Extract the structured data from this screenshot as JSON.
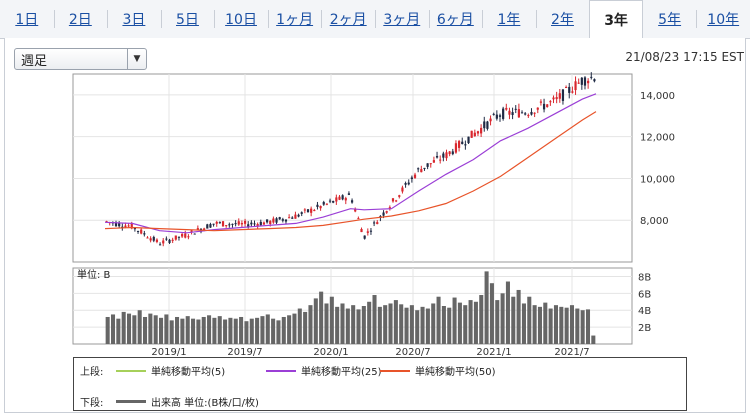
{
  "tabs": [
    {
      "label": "1日",
      "active": false
    },
    {
      "label": "2日",
      "active": false
    },
    {
      "label": "3日",
      "active": false
    },
    {
      "label": "5日",
      "active": false
    },
    {
      "label": "10日",
      "active": false
    },
    {
      "label": "1ヶ月",
      "active": false
    },
    {
      "label": "2ヶ月",
      "active": false
    },
    {
      "label": "3ヶ月",
      "active": false
    },
    {
      "label": "6ヶ月",
      "active": false
    },
    {
      "label": "1年",
      "active": false
    },
    {
      "label": "2年",
      "active": false
    },
    {
      "label": "3年",
      "active": true
    },
    {
      "label": "5年",
      "active": false
    },
    {
      "label": "10年",
      "active": false
    }
  ],
  "period_select": {
    "value": "週足"
  },
  "timestamp": "21/08/23 17:15 EST",
  "colors": {
    "up": "#d9272e",
    "down": "#1f2a44",
    "ma5": "#a6d05a",
    "ma25": "#9b3fd6",
    "ma50": "#e8542a",
    "volume": "#666666"
  },
  "chart_data": [
    {
      "type": "candlestick",
      "title": "",
      "x_tick_labels": [
        "2019/1",
        "2019/7",
        "2020/1",
        "2020/7",
        "2021/1",
        "2021/7"
      ],
      "y_tick_labels": [
        "8,000",
        "10,000",
        "12,000",
        "14,000"
      ],
      "ylim": [
        6000,
        15000
      ],
      "x_range": [
        "2018/08",
        "2021/08"
      ],
      "grid": true,
      "series": [
        {
          "name": "単純移動平均(5)",
          "x": [
            "2018/08",
            "2018/10",
            "2018/12",
            "2019/02",
            "2019/04",
            "2019/06",
            "2019/08",
            "2019/10",
            "2019/12",
            "2020/02",
            "2020/03",
            "2020/05",
            "2020/07",
            "2020/09",
            "2020/11",
            "2021/01",
            "2021/03",
            "2021/05",
            "2021/07",
            "2021/08"
          ],
          "values": [
            7950,
            7700,
            6900,
            7300,
            7850,
            7800,
            7900,
            8200,
            8700,
            9200,
            7200,
            8800,
            10400,
            11100,
            12100,
            13100,
            13200,
            13700,
            14700,
            14900
          ]
        },
        {
          "name": "単純移動平均(25)",
          "x": [
            "2018/08",
            "2018/10",
            "2018/12",
            "2019/02",
            "2019/04",
            "2019/06",
            "2019/08",
            "2019/10",
            "2019/12",
            "2020/02",
            "2020/03",
            "2020/05",
            "2020/07",
            "2020/09",
            "2020/11",
            "2021/01",
            "2021/03",
            "2021/05",
            "2021/07",
            "2021/08"
          ],
          "values": [
            7900,
            7850,
            7500,
            7400,
            7550,
            7650,
            7750,
            7850,
            8150,
            8550,
            8500,
            8550,
            9400,
            10200,
            10900,
            11800,
            12400,
            13100,
            13800,
            14050
          ]
        },
        {
          "name": "単純移動平均(50)",
          "x": [
            "2018/08",
            "2018/10",
            "2018/12",
            "2019/02",
            "2019/04",
            "2019/06",
            "2019/08",
            "2019/10",
            "2019/12",
            "2020/02",
            "2020/03",
            "2020/05",
            "2020/07",
            "2020/09",
            "2020/11",
            "2021/01",
            "2021/03",
            "2021/05",
            "2021/07",
            "2021/08"
          ],
          "values": [
            7600,
            7650,
            7600,
            7550,
            7500,
            7550,
            7600,
            7650,
            7750,
            7950,
            8050,
            8200,
            8450,
            8800,
            9400,
            10100,
            11000,
            11900,
            12800,
            13200
          ]
        }
      ]
    },
    {
      "type": "bar",
      "title": "単位: B",
      "y_tick_labels": [
        "2B",
        "4B",
        "6B",
        "8B"
      ],
      "ylim": [
        0,
        9
      ],
      "x_tick_labels": [
        "2019/1",
        "2019/7",
        "2020/1",
        "2020/7",
        "2021/1",
        "2021/7"
      ],
      "series": [
        {
          "name": "出来高",
          "values": [
            3.2,
            3.5,
            3.0,
            3.8,
            3.6,
            3.4,
            4.0,
            3.2,
            3.6,
            3.4,
            3.1,
            3.5,
            2.8,
            3.2,
            3.0,
            3.3,
            3.0,
            2.9,
            3.2,
            3.4,
            3.1,
            3.3,
            2.9,
            3.1,
            3.0,
            3.2,
            2.7,
            3.0,
            3.1,
            3.3,
            3.5,
            3.0,
            2.8,
            3.2,
            3.4,
            3.6,
            4.2,
            3.8,
            4.6,
            5.4,
            6.2,
            4.8,
            5.6,
            4.4,
            4.8,
            4.2,
            4.6,
            4.1,
            4.5,
            5.0,
            5.8,
            4.4,
            4.6,
            4.8,
            5.2,
            4.7,
            4.3,
            4.6,
            4.0,
            4.4,
            4.2,
            4.8,
            5.6,
            4.5,
            4.3,
            5.5,
            4.9,
            4.6,
            5.2,
            5.0,
            5.8,
            8.6,
            7.2,
            5.2,
            6.0,
            7.4,
            5.6,
            6.4,
            4.8,
            5.6,
            4.6,
            4.4,
            4.9,
            4.2,
            4.6,
            4.4,
            4.3,
            4.6,
            4.2,
            4.0,
            4.1,
            1.0
          ]
        }
      ]
    }
  ],
  "legend": {
    "upper_label": "上段:",
    "lower_label": "下段:",
    "ma5": "単純移動平均(5)",
    "ma25": "単純移動平均(25)",
    "ma50": "単純移動平均(50)",
    "volume": "出来高 単位:(B株/口/枚)"
  }
}
